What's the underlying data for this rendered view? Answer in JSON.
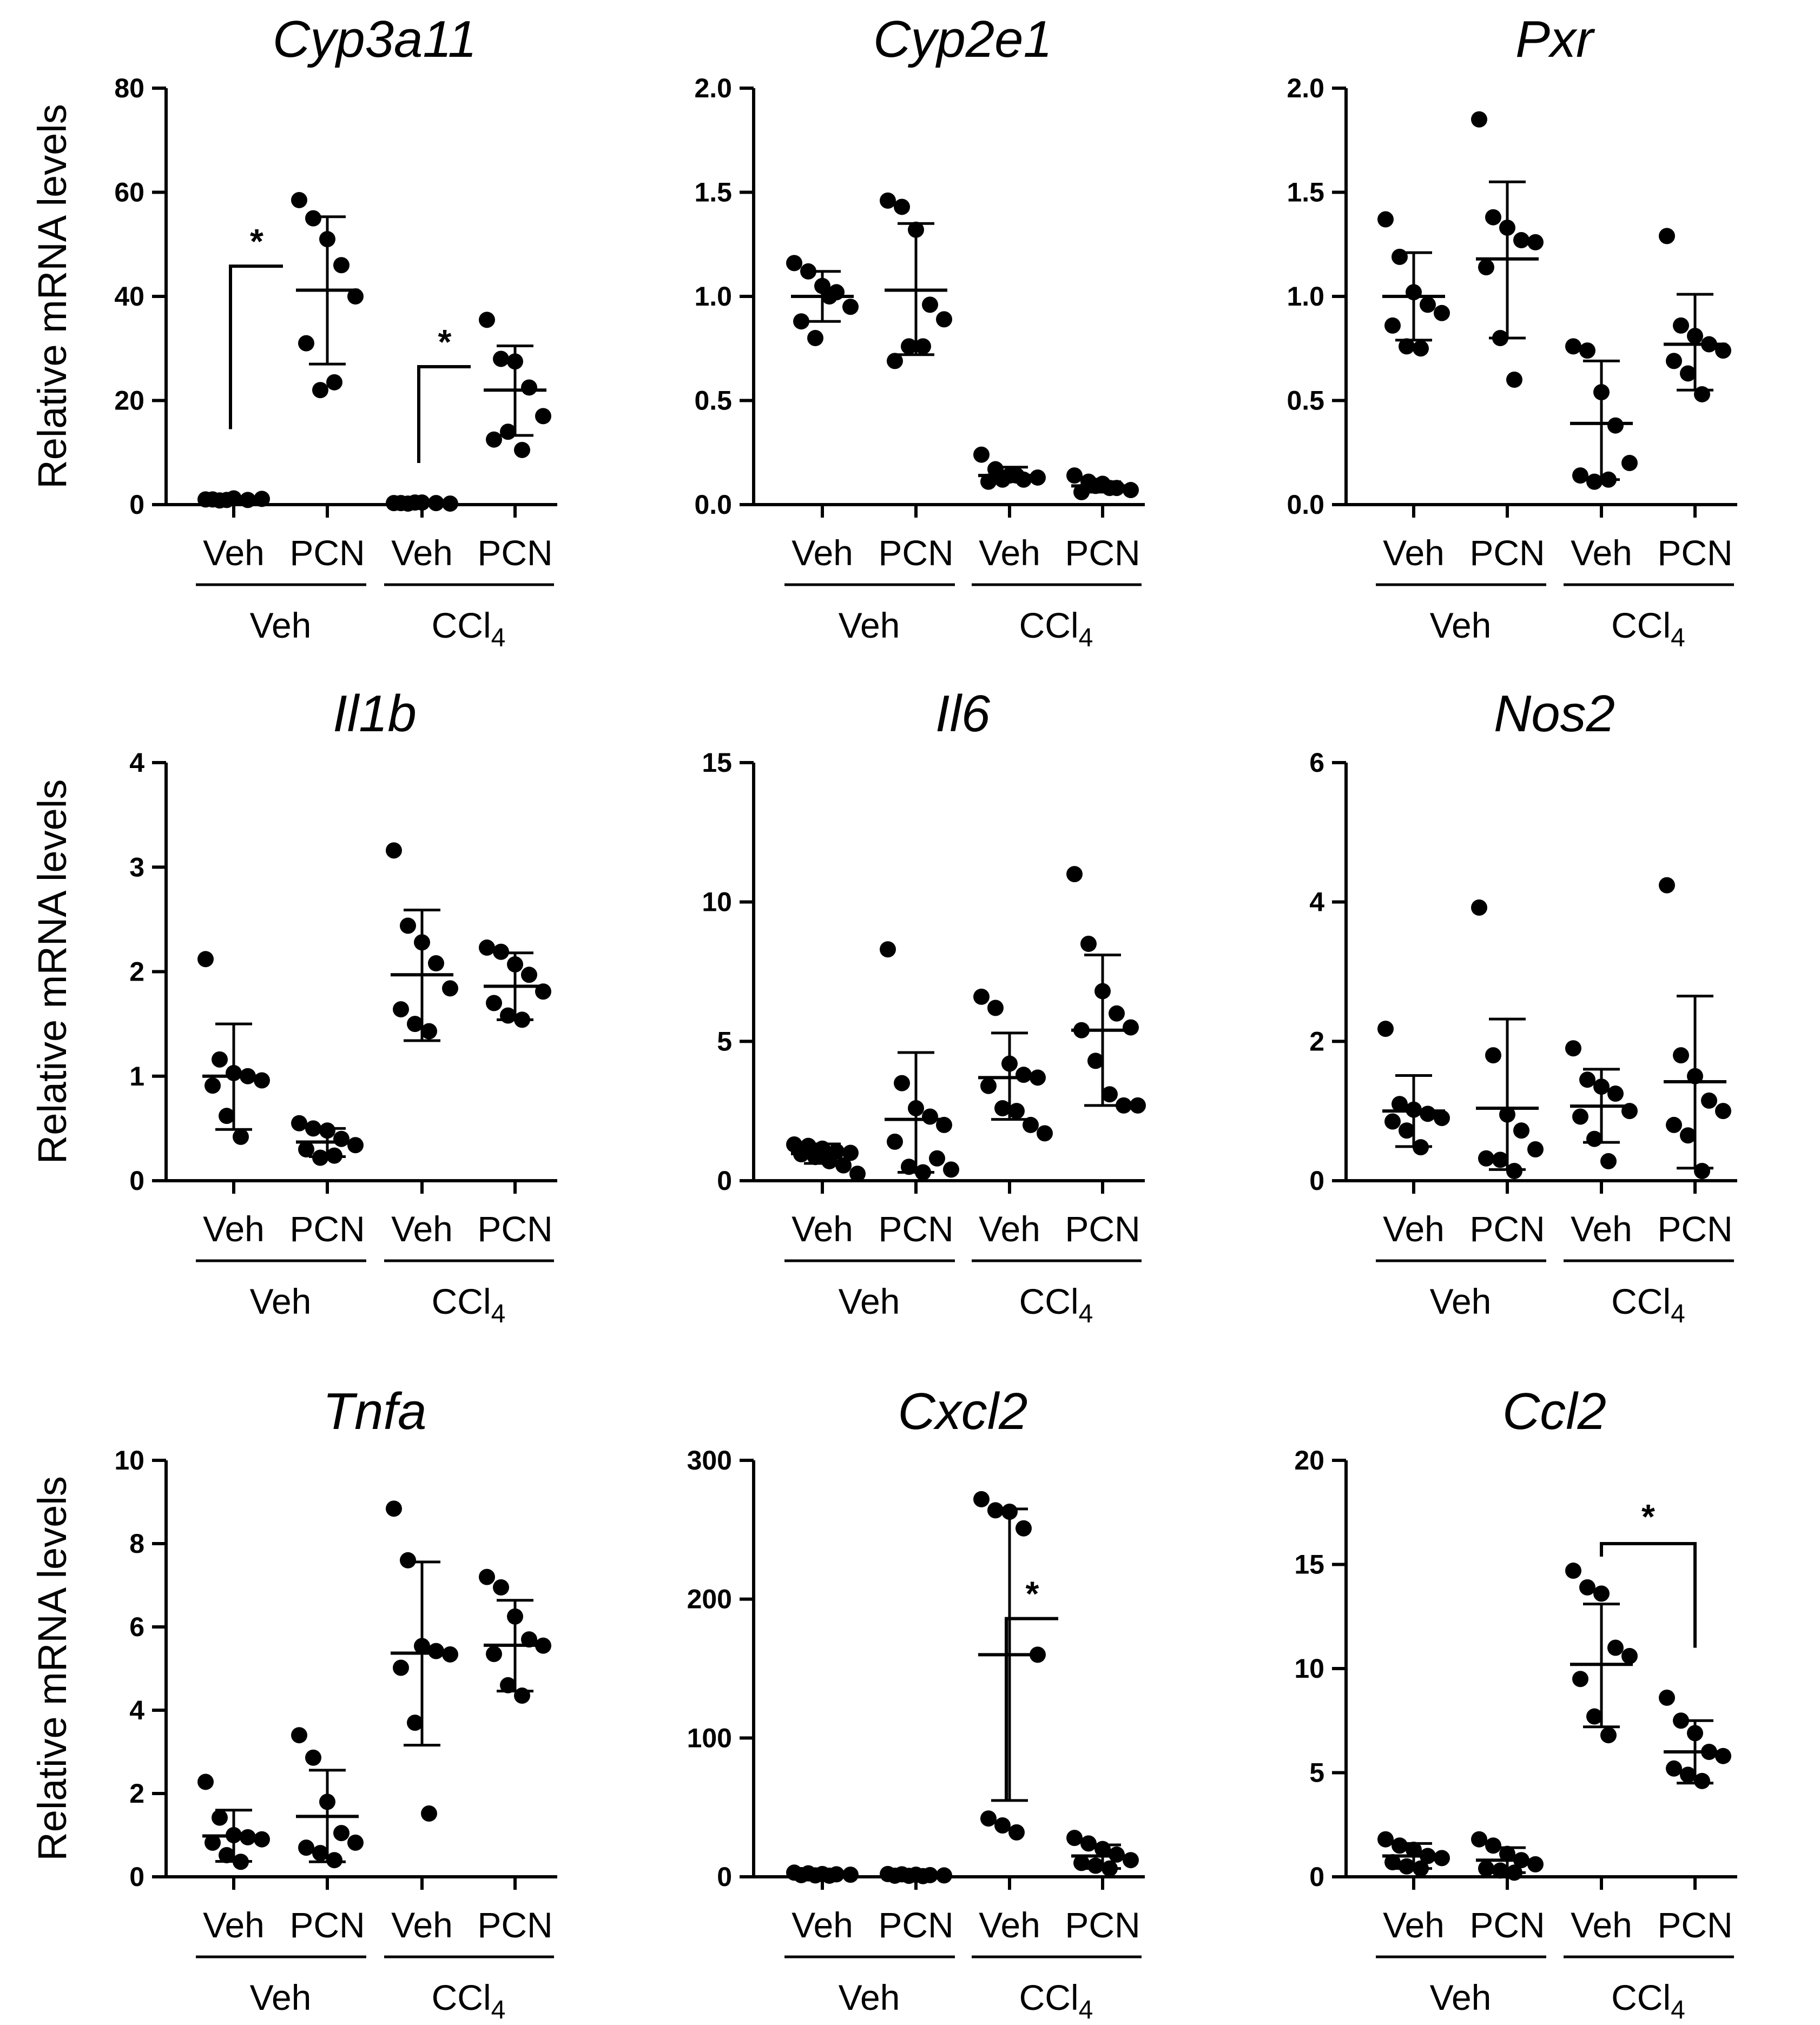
{
  "y_axis_label": "Relative mRNA levels",
  "chart_data": [
    {
      "type": "scatter",
      "title": "Cyp3a11",
      "ylabel": "Relative mRNA levels",
      "ylim": [
        0,
        80
      ],
      "yticks": [
        "0",
        "20",
        "40",
        "60",
        "80"
      ],
      "categories": [
        "Veh",
        "PCN",
        "Veh",
        "PCN"
      ],
      "groups": [
        {
          "name": "Veh",
          "sub": ""
        },
        {
          "name": "CCl",
          "sub": "4"
        }
      ],
      "series": [
        {
          "name": "Veh",
          "points": [
            1.0,
            0.8,
            1.2,
            0.9,
            1.1,
            1.0,
            0.9
          ],
          "mean": 1.0,
          "sd_low": 0.5,
          "sd_high": 1.5
        },
        {
          "name": "PCN",
          "points": [
            58.5,
            55.0,
            51.0,
            46.0,
            40.0,
            31.0,
            22.0,
            23.5
          ],
          "mean": 41.2,
          "sd_low": 27.0,
          "sd_high": 55.3
        },
        {
          "name": "Veh",
          "points": [
            0.3,
            0.2,
            0.4,
            0.3,
            0.2,
            0.3,
            0.4
          ],
          "mean": 0.3,
          "sd_low": 0.1,
          "sd_high": 0.5
        },
        {
          "name": "PCN",
          "points": [
            35.5,
            28.0,
            27.5,
            22.5,
            17.0,
            12.5,
            14.0,
            10.5
          ],
          "mean": 22.0,
          "sd_low": 13.3,
          "sd_high": 30.5
        }
      ],
      "significance": [
        {
          "label": "*",
          "from": 0,
          "to": 1,
          "start_y": 14.5,
          "top_y": 45.8
        },
        {
          "label": "*",
          "from": 2,
          "to": 3,
          "start_y": 8.0,
          "top_y": 26.5
        }
      ]
    },
    {
      "type": "scatter",
      "title": "Cyp2e1",
      "ylim": [
        0,
        2.0
      ],
      "yticks": [
        "0.0",
        "0.5",
        "1.0",
        "1.5",
        "2.0"
      ],
      "categories": [
        "Veh",
        "PCN",
        "Veh",
        "PCN"
      ],
      "groups": [
        {
          "name": "Veh",
          "sub": ""
        },
        {
          "name": "CCl",
          "sub": "4"
        }
      ],
      "series": [
        {
          "name": "Veh",
          "points": [
            1.16,
            1.12,
            1.05,
            1.02,
            0.95,
            0.88,
            0.8,
            1.0
          ],
          "mean": 1.0,
          "sd_low": 0.88,
          "sd_high": 1.12
        },
        {
          "name": "PCN",
          "points": [
            1.46,
            1.43,
            1.32,
            0.96,
            0.89,
            0.69,
            0.76,
            0.76
          ],
          "mean": 1.03,
          "sd_low": 0.72,
          "sd_high": 1.35
        },
        {
          "name": "Veh",
          "points": [
            0.24,
            0.17,
            0.14,
            0.12,
            0.13,
            0.11,
            0.12,
            0.14
          ],
          "mean": 0.14,
          "sd_low": 0.11,
          "sd_high": 0.18
        },
        {
          "name": "PCN",
          "points": [
            0.14,
            0.11,
            0.1,
            0.08,
            0.07,
            0.06,
            0.09,
            0.08
          ],
          "mean": 0.09,
          "sd_low": 0.06,
          "sd_high": 0.11
        }
      ]
    },
    {
      "type": "scatter",
      "title": "Pxr",
      "ylim": [
        0,
        2.0
      ],
      "yticks": [
        "0.0",
        "0.5",
        "1.0",
        "1.5",
        "2.0"
      ],
      "categories": [
        "Veh",
        "PCN",
        "Veh",
        "PCN"
      ],
      "groups": [
        {
          "name": "Veh",
          "sub": ""
        },
        {
          "name": "CCl",
          "sub": "4"
        }
      ],
      "series": [
        {
          "name": "Veh",
          "points": [
            1.37,
            1.19,
            1.02,
            0.96,
            0.92,
            0.86,
            0.76,
            0.75
          ],
          "mean": 1.0,
          "sd_low": 0.79,
          "sd_high": 1.21
        },
        {
          "name": "PCN",
          "points": [
            1.85,
            1.38,
            1.33,
            1.27,
            1.26,
            1.14,
            0.8,
            0.6
          ],
          "mean": 1.18,
          "sd_low": 0.8,
          "sd_high": 1.55
        },
        {
          "name": "Veh",
          "points": [
            0.76,
            0.74,
            0.54,
            0.38,
            0.2,
            0.14,
            0.11,
            0.12
          ],
          "mean": 0.39,
          "sd_low": 0.12,
          "sd_high": 0.69
        },
        {
          "name": "PCN",
          "points": [
            1.29,
            0.86,
            0.81,
            0.77,
            0.74,
            0.69,
            0.63,
            0.53
          ],
          "mean": 0.77,
          "sd_low": 0.55,
          "sd_high": 1.01
        }
      ]
    },
    {
      "type": "scatter",
      "title": "Il1b",
      "ylabel": "Relative mRNA levels",
      "ylim": [
        0,
        4
      ],
      "yticks": [
        "0",
        "1",
        "2",
        "3",
        "4"
      ],
      "categories": [
        "Veh",
        "PCN",
        "Veh",
        "PCN"
      ],
      "groups": [
        {
          "name": "Veh",
          "sub": ""
        },
        {
          "name": "CCl",
          "sub": "4"
        }
      ],
      "series": [
        {
          "name": "Veh",
          "points": [
            2.12,
            1.16,
            1.03,
            1.0,
            0.96,
            0.91,
            0.62,
            0.42
          ],
          "mean": 1.0,
          "sd_low": 0.49,
          "sd_high": 1.5
        },
        {
          "name": "PCN",
          "points": [
            0.55,
            0.5,
            0.48,
            0.4,
            0.34,
            0.3,
            0.22,
            0.24
          ],
          "mean": 0.37,
          "sd_low": 0.23,
          "sd_high": 0.5
        },
        {
          "name": "Veh",
          "points": [
            3.16,
            2.44,
            2.28,
            2.08,
            1.84,
            1.64,
            1.5,
            1.43
          ],
          "mean": 1.97,
          "sd_low": 1.34,
          "sd_high": 2.59
        },
        {
          "name": "PCN",
          "points": [
            2.23,
            2.19,
            2.07,
            1.97,
            1.81,
            1.7,
            1.58,
            1.54
          ],
          "mean": 1.86,
          "sd_low": 1.54,
          "sd_high": 2.18
        }
      ]
    },
    {
      "type": "scatter",
      "title": "Il6",
      "ylim": [
        0,
        15
      ],
      "yticks": [
        "0",
        "5",
        "10",
        "15"
      ],
      "categories": [
        "Veh",
        "PCN",
        "Veh",
        "PCN"
      ],
      "groups": [
        {
          "name": "Veh",
          "sub": ""
        },
        {
          "name": "CCl",
          "sub": "4"
        }
      ],
      "series": [
        {
          "name": "Veh",
          "points": [
            1.3,
            1.25,
            1.15,
            1.05,
            1.0,
            0.95,
            0.85,
            0.7,
            0.55,
            0.25
          ],
          "mean": 0.97,
          "sd_low": 0.62,
          "sd_high": 1.32
        },
        {
          "name": "PCN",
          "points": [
            8.3,
            3.5,
            2.6,
            2.3,
            2.0,
            1.4,
            0.5,
            0.3,
            0.8,
            0.4
          ],
          "mean": 2.2,
          "sd_low": 0.3,
          "sd_high": 4.6
        },
        {
          "name": "Veh",
          "points": [
            6.6,
            6.2,
            4.2,
            3.8,
            3.7,
            3.4,
            2.6,
            2.5,
            2.0,
            1.7
          ],
          "mean": 3.7,
          "sd_low": 2.2,
          "sd_high": 5.3
        },
        {
          "name": "PCN",
          "points": [
            11.0,
            8.5,
            6.8,
            6.0,
            5.5,
            5.4,
            4.3,
            3.1,
            2.7,
            2.7
          ],
          "mean": 5.4,
          "sd_low": 2.7,
          "sd_high": 8.1
        }
      ]
    },
    {
      "type": "scatter",
      "title": "Nos2",
      "ylim": [
        0,
        6
      ],
      "yticks": [
        "0",
        "2",
        "4",
        "6"
      ],
      "categories": [
        "Veh",
        "PCN",
        "Veh",
        "PCN"
      ],
      "groups": [
        {
          "name": "Veh",
          "sub": ""
        },
        {
          "name": "CCl",
          "sub": "4"
        }
      ],
      "series": [
        {
          "name": "Veh",
          "points": [
            2.18,
            1.1,
            1.02,
            0.96,
            0.9,
            0.85,
            0.72,
            0.48
          ],
          "mean": 1.0,
          "sd_low": 0.49,
          "sd_high": 1.51
        },
        {
          "name": "PCN",
          "points": [
            3.92,
            1.8,
            0.95,
            0.72,
            0.45,
            0.32,
            0.3,
            0.14
          ],
          "mean": 1.04,
          "sd_low": 0.16,
          "sd_high": 2.32
        },
        {
          "name": "Veh",
          "points": [
            1.9,
            1.45,
            1.35,
            1.25,
            1.0,
            0.92,
            0.6,
            0.28
          ],
          "mean": 1.07,
          "sd_low": 0.55,
          "sd_high": 1.6
        },
        {
          "name": "PCN",
          "points": [
            4.24,
            1.8,
            1.5,
            1.15,
            1.0,
            0.8,
            0.65,
            0.14
          ],
          "mean": 1.42,
          "sd_low": 0.18,
          "sd_high": 2.65
        }
      ]
    },
    {
      "type": "scatter",
      "title": "Tnfa",
      "ylabel": "Relative mRNA levels",
      "ylim": [
        0,
        10
      ],
      "yticks": [
        "0",
        "2",
        "4",
        "6",
        "8",
        "10"
      ],
      "categories": [
        "Veh",
        "PCN",
        "Veh",
        "PCN"
      ],
      "groups": [
        {
          "name": "Veh",
          "sub": ""
        },
        {
          "name": "CCl",
          "sub": "4"
        }
      ],
      "series": [
        {
          "name": "Veh",
          "points": [
            2.28,
            1.42,
            1.0,
            0.95,
            0.9,
            0.82,
            0.52,
            0.36
          ],
          "mean": 0.98,
          "sd_low": 0.37,
          "sd_high": 1.6
        },
        {
          "name": "PCN",
          "points": [
            3.4,
            2.86,
            1.8,
            1.05,
            0.82,
            0.7,
            0.57,
            0.4
          ],
          "mean": 1.45,
          "sd_low": 0.36,
          "sd_high": 2.56
        },
        {
          "name": "Veh",
          "points": [
            8.84,
            7.6,
            5.54,
            5.42,
            5.34,
            5.02,
            3.7,
            1.52
          ],
          "mean": 5.37,
          "sd_low": 3.16,
          "sd_high": 7.56
        },
        {
          "name": "PCN",
          "points": [
            7.2,
            6.95,
            6.25,
            5.7,
            5.55,
            5.35,
            4.6,
            4.35
          ],
          "mean": 5.56,
          "sd_low": 4.46,
          "sd_high": 6.64
        }
      ]
    },
    {
      "type": "scatter",
      "title": "Cxcl2",
      "ylim": [
        0,
        300
      ],
      "yticks": [
        "0",
        "100",
        "200",
        "300"
      ],
      "categories": [
        "Veh",
        "PCN",
        "Veh",
        "PCN"
      ],
      "groups": [
        {
          "name": "Veh",
          "sub": ""
        },
        {
          "name": "CCl",
          "sub": "4"
        }
      ],
      "series": [
        {
          "name": "Veh",
          "points": [
            3.0,
            2.5,
            2.0,
            1.8,
            1.5,
            1.2,
            1.0,
            0.8
          ],
          "mean": 1.7,
          "sd_low": 0.8,
          "sd_high": 2.6
        },
        {
          "name": "PCN",
          "points": [
            2.0,
            1.8,
            1.5,
            1.2,
            1.0,
            0.8,
            0.7,
            0.5
          ],
          "mean": 1.2,
          "sd_low": 0.5,
          "sd_high": 1.9
        },
        {
          "name": "Veh",
          "points": [
            272,
            264,
            263,
            251,
            160,
            42,
            37,
            32
          ],
          "mean": 160,
          "sd_low": 55,
          "sd_high": 265
        },
        {
          "name": "PCN",
          "points": [
            28,
            24,
            20,
            16,
            12,
            10,
            8,
            6
          ],
          "mean": 15,
          "sd_low": 6,
          "sd_high": 23
        }
      ],
      "significance": [
        {
          "label": "*",
          "from": 2,
          "to": 3,
          "start_y": 55,
          "top_y": 186
        }
      ]
    },
    {
      "type": "scatter",
      "title": "Ccl2",
      "ylim": [
        0,
        20
      ],
      "yticks": [
        "0",
        "5",
        "10",
        "15",
        "20"
      ],
      "categories": [
        "Veh",
        "PCN",
        "Veh",
        "PCN"
      ],
      "groups": [
        {
          "name": "Veh",
          "sub": ""
        },
        {
          "name": "CCl",
          "sub": "4"
        }
      ],
      "series": [
        {
          "name": "Veh",
          "points": [
            1.8,
            1.5,
            1.3,
            1.0,
            0.9,
            0.7,
            0.5,
            0.4
          ],
          "mean": 1.0,
          "sd_low": 0.4,
          "sd_high": 1.6
        },
        {
          "name": "PCN",
          "points": [
            1.8,
            1.5,
            1.1,
            0.8,
            0.6,
            0.4,
            0.3,
            0.2
          ],
          "mean": 0.8,
          "sd_low": 0.2,
          "sd_high": 1.4
        },
        {
          "name": "Veh",
          "points": [
            14.7,
            13.9,
            13.6,
            11.0,
            10.6,
            9.5,
            7.7,
            6.8
          ],
          "mean": 10.2,
          "sd_low": 7.2,
          "sd_high": 13.1
        },
        {
          "name": "PCN",
          "points": [
            8.6,
            7.5,
            6.9,
            6.0,
            5.8,
            5.2,
            4.9,
            4.6
          ],
          "mean": 6.0,
          "sd_low": 4.5,
          "sd_high": 7.5
        }
      ],
      "significance": [
        {
          "label": "*",
          "from": 2,
          "to": 3,
          "start_y": 16.0,
          "end_y": 11.0
        }
      ]
    }
  ]
}
